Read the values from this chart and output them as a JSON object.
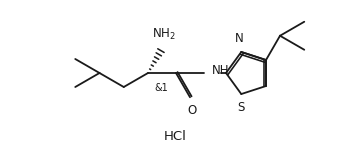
{
  "bg_color": "#ffffff",
  "line_color": "#1a1a1a",
  "line_width": 1.3,
  "font_size_label": 8.5,
  "font_size_hcl": 9.5,
  "figsize": [
    3.5,
    1.53
  ],
  "dpi": 100,
  "xlim": [
    0,
    350
  ],
  "ylim": [
    0,
    153
  ]
}
